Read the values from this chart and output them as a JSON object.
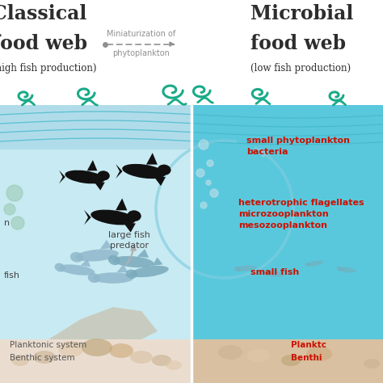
{
  "title_left_line1": "Classical",
  "title_left_line2": "food web",
  "title_left_line3": "(high fish production)",
  "title_right_line1": "Microbial",
  "title_right_line2": "food web",
  "title_right_line3": "(low fish production)",
  "arrow_label_line1": "Miniaturization of",
  "arrow_label_line2": "phytoplankton",
  "left_bg_color": "#c8eaf2",
  "right_bg_color": "#5ac8dc",
  "bottom_left_color": "#eaddd0",
  "bottom_right_color": "#d8c0a0",
  "wave_color": "#1aaa88",
  "wave_line_color": "#40b8c8",
  "title_color": "#2d2d2d",
  "arrow_color": "#909090",
  "red_label_color": "#cc1100",
  "gray_label_color": "#444444",
  "label_large_fish_predator": "large fish\npredator",
  "label_planktonic_left": "Planktonic system",
  "label_benthic_left": "Benthic system",
  "label_planktonic_right": "Planktc",
  "label_benthic_right": "Benthi",
  "label_small_phyto": "small phytoplankton\nbacteria",
  "label_hetero": "heterotrophic flagellates\nmicrozooplankton\nmesozooplankton",
  "label_small_fish": "small fish",
  "fig_width": 4.74,
  "fig_height": 4.74,
  "dpi": 100
}
